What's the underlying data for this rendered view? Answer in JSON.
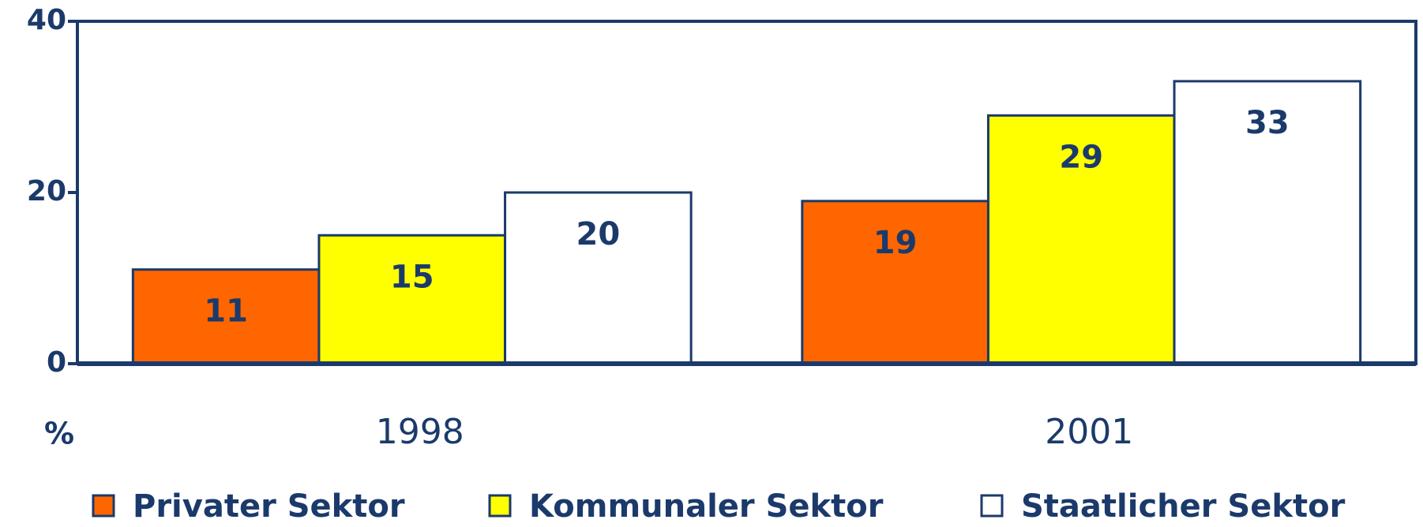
{
  "chart_data": {
    "type": "bar",
    "categories": [
      "1998",
      "2001"
    ],
    "series": [
      {
        "name": "Privater Sektor",
        "color": "#ff6600",
        "values": [
          11,
          19
        ]
      },
      {
        "name": "Kommunaler Sektor",
        "color": "#ffff00",
        "values": [
          15,
          29
        ]
      },
      {
        "name": "Staatlicher Sektor",
        "color": "#ffffff",
        "values": [
          20,
          33
        ]
      }
    ],
    "ylabel": "%",
    "ylim": [
      0,
      40
    ],
    "yticks": [
      0,
      20,
      40
    ],
    "grid": false,
    "legend": "bottom"
  }
}
